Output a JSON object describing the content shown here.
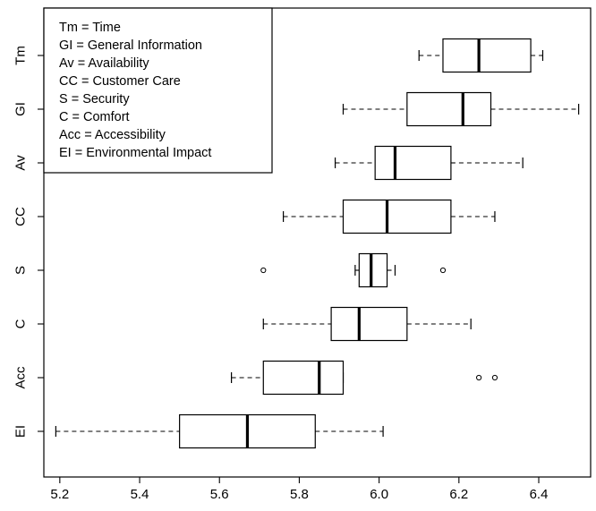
{
  "chart_data": {
    "type": "boxplot",
    "orientation": "horizontal",
    "xlim": [
      5.16,
      6.53
    ],
    "x_ticks": [
      5.2,
      5.4,
      5.6,
      5.8,
      6.0,
      6.2,
      6.4
    ],
    "x_tick_labels": [
      "5.2",
      "5.4",
      "5.6",
      "5.8",
      "6.0",
      "6.2",
      "6.4"
    ],
    "grid": false,
    "legend_placement": "top-left",
    "legend_entries": [
      "Tm = Time",
      "GI = General Information",
      "Av = Availability",
      "CC = Customer Care",
      "S = Security",
      "C = Comfort",
      "Acc = Accessibility",
      "EI = Environmental Impact"
    ],
    "categories": [
      "Tm",
      "GI",
      "Av",
      "CC",
      "S",
      "C",
      "Acc",
      "EI"
    ],
    "boxes": [
      {
        "label": "Tm",
        "whisker_low": 6.1,
        "q1": 6.16,
        "median": 6.25,
        "q3": 6.38,
        "whisker_high": 6.41,
        "outliers": []
      },
      {
        "label": "GI",
        "whisker_low": 5.91,
        "q1": 6.07,
        "median": 6.21,
        "q3": 6.28,
        "whisker_high": 6.5,
        "outliers": []
      },
      {
        "label": "Av",
        "whisker_low": 5.89,
        "q1": 5.99,
        "median": 6.04,
        "q3": 6.18,
        "whisker_high": 6.36,
        "outliers": []
      },
      {
        "label": "CC",
        "whisker_low": 5.76,
        "q1": 5.91,
        "median": 6.02,
        "q3": 6.18,
        "whisker_high": 6.29,
        "outliers": []
      },
      {
        "label": "S",
        "whisker_low": 5.94,
        "q1": 5.95,
        "median": 5.98,
        "q3": 6.02,
        "whisker_high": 6.04,
        "outliers": [
          5.71,
          6.16
        ]
      },
      {
        "label": "C",
        "whisker_low": 5.71,
        "q1": 5.88,
        "median": 5.95,
        "q3": 6.07,
        "whisker_high": 6.23,
        "outliers": []
      },
      {
        "label": "Acc",
        "whisker_low": 5.63,
        "q1": 5.71,
        "median": 5.85,
        "q3": 5.91,
        "whisker_high": 5.91,
        "outliers": [
          6.25,
          6.29
        ]
      },
      {
        "label": "EI",
        "whisker_low": 5.19,
        "q1": 5.5,
        "median": 5.67,
        "q3": 5.84,
        "whisker_high": 6.01,
        "outliers": []
      }
    ]
  }
}
